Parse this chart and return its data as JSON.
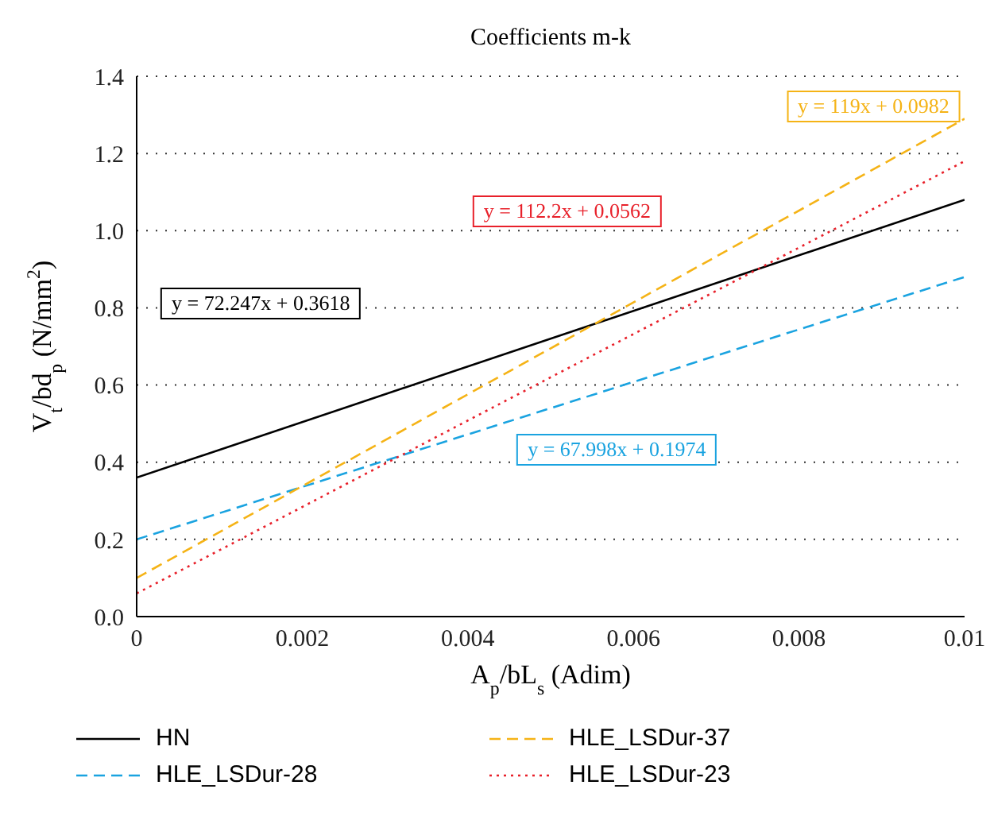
{
  "chart_data": {
    "type": "line",
    "title": "Coefficients m-k",
    "xlabel": "A$_{p}$/bL$_{s}$ (Adim)",
    "ylabel": "V$_{t}$/bd$_{p}$ (N/mm$^{2}$)",
    "x": [
      0,
      0.01
    ],
    "series": [
      {
        "name": "HN",
        "color": "#000000",
        "line_style": "solid",
        "values": [
          0.36,
          1.08
        ]
      },
      {
        "name": "HLE_LSDur-28",
        "color": "#1aa3e0",
        "line_style": "dashed",
        "values": [
          0.2,
          0.88
        ]
      },
      {
        "name": "HLE_LSDur-37",
        "color": "#f5b316",
        "line_style": "dashed",
        "values": [
          0.1,
          1.29
        ]
      },
      {
        "name": "HLE_LSDur-23",
        "color": "#e8202a",
        "line_style": "dotted",
        "values": [
          0.06,
          1.18
        ]
      }
    ],
    "annotations": [
      "y = 72.247x + 0.3618",
      "y = 67.998x + 0.1974",
      "y = 119x + 0.0982",
      "y = 112.2x + 0.0562"
    ],
    "xlim": [
      0,
      0.01
    ],
    "xticks": [
      0,
      0.002,
      0.004,
      0.006,
      0.008,
      0.01
    ],
    "ylim": [
      0,
      1.4
    ],
    "yticks": [
      {
        "value": 0,
        "label": "0.0"
      },
      {
        "value": 0.2,
        "label": "0.2"
      },
      {
        "value": 0.4,
        "label": "0.4"
      },
      {
        "value": 0.6,
        "label": "0.6"
      },
      {
        "value": 0.8,
        "label": "0.8"
      },
      {
        "value": 1,
        "label": "1.0"
      },
      {
        "value": 1.2,
        "label": "1.2"
      },
      {
        "value": 1.4,
        "label": "1.4"
      }
    ],
    "grid": "y",
    "legend": "bottom",
    "marker": "none"
  }
}
